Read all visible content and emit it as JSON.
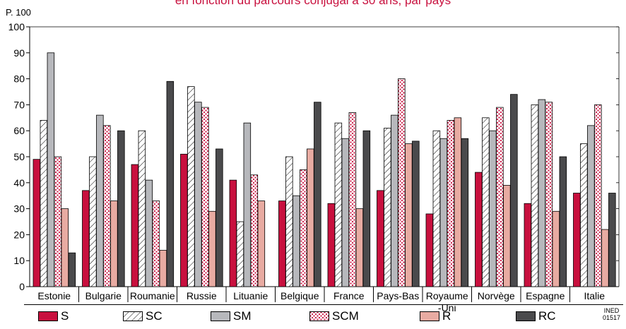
{
  "chart_data": {
    "type": "bar",
    "title": "en fonction du parcours conjugal à 30 ans, par pays",
    "ylabel": "P. 100",
    "ylim": [
      0,
      100
    ],
    "yticks": [
      0,
      10,
      20,
      30,
      40,
      50,
      60,
      70,
      80,
      90,
      100
    ],
    "grid": false,
    "legend_position": "bottom",
    "categories": [
      "Estonie",
      "Bulgarie",
      "Roumanie",
      "Russie",
      "Lituanie",
      "Belgique",
      "France",
      "Pays-Bas",
      "Royaume-Uni",
      "Norvège",
      "Espagne",
      "Italie"
    ],
    "category_lines": [
      [
        "Estonie"
      ],
      [
        "Bulgarie"
      ],
      [
        "Roumanie"
      ],
      [
        "Russie"
      ],
      [
        "Lituanie"
      ],
      [
        "Belgique"
      ],
      [
        "France"
      ],
      [
        "Pays-Bas"
      ],
      [
        "Royaume",
        "-Uni"
      ],
      [
        "Norvège"
      ],
      [
        "Espagne"
      ],
      [
        "Italie"
      ]
    ],
    "series": [
      {
        "name": "S",
        "pattern": "solid",
        "color": "#c8103e",
        "values": [
          49,
          37,
          47,
          51,
          41,
          33,
          32,
          37,
          28,
          44,
          32,
          36
        ]
      },
      {
        "name": "SC",
        "pattern": "hatch",
        "color": "#ffffff",
        "values": [
          64,
          50,
          60,
          77,
          25,
          50,
          63,
          61,
          60,
          65,
          70,
          55
        ]
      },
      {
        "name": "SM",
        "pattern": "solid",
        "color": "#b7b8bc",
        "values": [
          90,
          66,
          41,
          71,
          63,
          35,
          57,
          66,
          57,
          60,
          72,
          62
        ]
      },
      {
        "name": "SCM",
        "pattern": "dots",
        "color": "#c8103e",
        "values": [
          50,
          62,
          33,
          69,
          43,
          45,
          67,
          80,
          64,
          69,
          71,
          70
        ]
      },
      {
        "name": "R",
        "pattern": "solid",
        "color": "#e8aba2",
        "values": [
          30,
          33,
          14,
          29,
          33,
          53,
          30,
          55,
          65,
          39,
          29,
          22
        ]
      },
      {
        "name": "RC",
        "pattern": "solid",
        "color": "#4a4a4c",
        "values": [
          13,
          60,
          79,
          53,
          0,
          71,
          60,
          56,
          57,
          74,
          50,
          36
        ]
      }
    ]
  },
  "legend": {
    "code": [
      "INED",
      "01517"
    ]
  }
}
